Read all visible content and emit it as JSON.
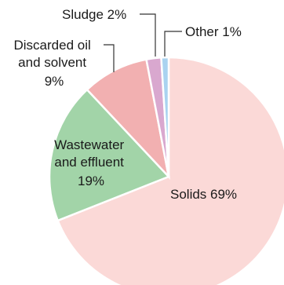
{
  "chart_data": {
    "type": "pie",
    "title": "",
    "slices": [
      {
        "label_lines": [
          "Solids 69%"
        ],
        "category": "Solids",
        "value": 69,
        "color": "#fbd9d7"
      },
      {
        "label_lines": [
          "Wastewater",
          "and effluent",
          "19%"
        ],
        "category": "Wastewater and effluent",
        "value": 19,
        "color": "#a2d4a8"
      },
      {
        "label_lines": [
          "Discarded oil",
          "and solvent",
          "9%"
        ],
        "category": "Discarded oil and solvent",
        "value": 9,
        "color": "#f2b0b1"
      },
      {
        "label_lines": [
          "Sludge 2%"
        ],
        "category": "Sludge",
        "value": 2,
        "color": "#d9a8cf"
      },
      {
        "label_lines": [
          "Other 1%"
        ],
        "category": "Other",
        "value": 1,
        "color": "#a9d3f0"
      }
    ]
  }
}
